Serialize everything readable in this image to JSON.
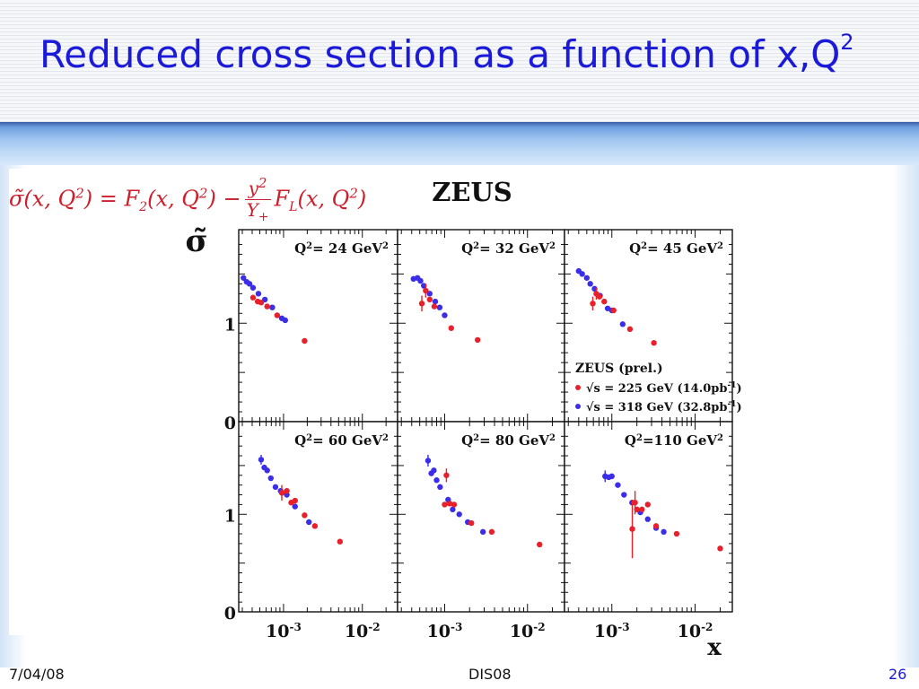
{
  "slide": {
    "title_main": "Reduced cross section as a function of x,Q",
    "title_sup": "2",
    "formula": {
      "lhs": "σ̃(x, Q",
      "lhs_sup": "2",
      "lhs_end": ") = F",
      "f2_sub": "2",
      "f2_args": "(x, Q",
      "f2_sup": "2",
      "f2_end": ") −",
      "frac_num": "y",
      "frac_num_sup": "2",
      "frac_den": "Y",
      "frac_den_sub": "+",
      "fl": "F",
      "fl_sub": "L",
      "fl_args": "(x, Q",
      "fl_sup": "2",
      "fl_end": ")"
    },
    "footer": {
      "date": "7/04/08",
      "center": "DIS08",
      "page": "26"
    }
  },
  "colors": {
    "title": "#1a1ad8",
    "red_series": "#e8202a",
    "blue_series": "#3a2ee8",
    "formula": "#cc1f2b"
  },
  "chart_data": {
    "type": "scatter",
    "title": "ZEUS",
    "ylabel": "σ̃",
    "xlabel": "x",
    "x_scale": "log",
    "xlim": [
      0.00027,
      0.028
    ],
    "ylim": [
      0,
      1.95
    ],
    "x_ticks": [
      {
        "value": 0.001,
        "label": "10",
        "sup": "-3"
      },
      {
        "value": 0.01,
        "label": "10",
        "sup": "-2"
      }
    ],
    "y_ticks": [
      {
        "value": 0,
        "label": "0"
      },
      {
        "value": 1,
        "label": "1"
      }
    ],
    "legend": {
      "title": "ZEUS (prel.)",
      "entries": [
        {
          "series": "red",
          "text": "√s = 225 GeV (14.0pb",
          "sup": "-1",
          "end": ")"
        },
        {
          "series": "blue",
          "text": "√s = 318 GeV (32.8pb",
          "sup": "-1",
          "end": ")"
        }
      ]
    },
    "panels": [
      {
        "q2_prefix": "Q",
        "q2_sup": "2",
        "q2_text": "= 24 GeV",
        "q2_unit_sup": "2",
        "red": [
          {
            "x": 0.00041,
            "y": 1.26
          },
          {
            "x": 0.00047,
            "y": 1.22
          },
          {
            "x": 0.00052,
            "y": 1.21
          },
          {
            "x": 0.00062,
            "y": 1.17
          },
          {
            "x": 0.00083,
            "y": 1.08
          },
          {
            "x": 0.00185,
            "y": 0.82
          }
        ],
        "blue": [
          {
            "x": 0.00031,
            "y": 1.46
          },
          {
            "x": 0.00034,
            "y": 1.42
          },
          {
            "x": 0.00037,
            "y": 1.4
          },
          {
            "x": 0.00041,
            "y": 1.36
          },
          {
            "x": 0.00048,
            "y": 1.3
          },
          {
            "x": 0.00058,
            "y": 1.24
          },
          {
            "x": 0.00072,
            "y": 1.16
          },
          {
            "x": 0.00095,
            "y": 1.05
          },
          {
            "x": 0.00105,
            "y": 1.03
          }
        ]
      },
      {
        "q2_prefix": "Q",
        "q2_sup": "2",
        "q2_text": "= 32 GeV",
        "q2_unit_sup": "2",
        "red": [
          {
            "x": 0.00053,
            "y": 1.2,
            "err": 0.08
          },
          {
            "x": 0.00059,
            "y": 1.33,
            "err": 0.07
          },
          {
            "x": 0.00066,
            "y": 1.24
          },
          {
            "x": 0.00075,
            "y": 1.17
          },
          {
            "x": 0.0012,
            "y": 0.95
          },
          {
            "x": 0.0025,
            "y": 0.83
          }
        ],
        "blue": [
          {
            "x": 0.00042,
            "y": 1.45
          },
          {
            "x": 0.00047,
            "y": 1.46
          },
          {
            "x": 0.00051,
            "y": 1.43
          },
          {
            "x": 0.00056,
            "y": 1.38
          },
          {
            "x": 0.00066,
            "y": 1.3
          },
          {
            "x": 0.00077,
            "y": 1.22
          },
          {
            "x": 0.00087,
            "y": 1.16
          },
          {
            "x": 0.001,
            "y": 1.08
          }
        ]
      },
      {
        "q2_prefix": "Q",
        "q2_sup": "2",
        "q2_text": "= 45 GeV",
        "q2_unit_sup": "2",
        "red": [
          {
            "x": 0.00059,
            "y": 1.2,
            "err": 0.07
          },
          {
            "x": 0.00065,
            "y": 1.3,
            "err": 0.06
          },
          {
            "x": 0.00071,
            "y": 1.27
          },
          {
            "x": 0.00081,
            "y": 1.22
          },
          {
            "x": 0.00105,
            "y": 1.13
          },
          {
            "x": 0.00165,
            "y": 0.94
          },
          {
            "x": 0.0032,
            "y": 0.8
          }
        ],
        "blue": [
          {
            "x": 0.0004,
            "y": 1.53
          },
          {
            "x": 0.00044,
            "y": 1.5
          },
          {
            "x": 0.0005,
            "y": 1.46
          },
          {
            "x": 0.00055,
            "y": 1.4
          },
          {
            "x": 0.00062,
            "y": 1.35
          },
          {
            "x": 0.00072,
            "y": 1.28
          },
          {
            "x": 0.00089,
            "y": 1.15
          },
          {
            "x": 0.001,
            "y": 1.13
          },
          {
            "x": 0.00135,
            "y": 0.99
          }
        ]
      },
      {
        "q2_prefix": "Q",
        "q2_sup": "2",
        "q2_text": "= 60 GeV",
        "q2_unit_sup": "2",
        "red": [
          {
            "x": 0.00095,
            "y": 1.22,
            "err": 0.08
          },
          {
            "x": 0.0011,
            "y": 1.24
          },
          {
            "x": 0.00125,
            "y": 1.12
          },
          {
            "x": 0.0014,
            "y": 1.14
          },
          {
            "x": 0.00185,
            "y": 0.99
          },
          {
            "x": 0.0025,
            "y": 0.88
          },
          {
            "x": 0.0052,
            "y": 0.72
          }
        ],
        "blue": [
          {
            "x": 0.00052,
            "y": 1.56,
            "err": 0.05
          },
          {
            "x": 0.00057,
            "y": 1.48
          },
          {
            "x": 0.00062,
            "y": 1.45
          },
          {
            "x": 0.00069,
            "y": 1.37
          },
          {
            "x": 0.00079,
            "y": 1.28
          },
          {
            "x": 0.00092,
            "y": 1.24
          },
          {
            "x": 0.0011,
            "y": 1.2
          },
          {
            "x": 0.0014,
            "y": 1.08
          },
          {
            "x": 0.0021,
            "y": 0.92
          }
        ]
      },
      {
        "q2_prefix": "Q",
        "q2_sup": "2",
        "q2_text": "= 80 GeV",
        "q2_unit_sup": "2",
        "red": [
          {
            "x": 0.001,
            "y": 1.1
          },
          {
            "x": 0.00105,
            "y": 1.4,
            "err": 0.07
          },
          {
            "x": 0.00115,
            "y": 1.11
          },
          {
            "x": 0.0013,
            "y": 1.1
          },
          {
            "x": 0.0021,
            "y": 0.91
          },
          {
            "x": 0.0037,
            "y": 0.82
          },
          {
            "x": 0.014,
            "y": 0.69
          }
        ],
        "blue": [
          {
            "x": 0.00063,
            "y": 1.55,
            "err": 0.06
          },
          {
            "x": 0.00069,
            "y": 1.42
          },
          {
            "x": 0.00074,
            "y": 1.45
          },
          {
            "x": 0.0008,
            "y": 1.35
          },
          {
            "x": 0.00088,
            "y": 1.28
          },
          {
            "x": 0.0011,
            "y": 1.15
          },
          {
            "x": 0.00125,
            "y": 1.05
          },
          {
            "x": 0.0015,
            "y": 1.0
          },
          {
            "x": 0.0019,
            "y": 0.92
          },
          {
            "x": 0.0029,
            "y": 0.82
          }
        ]
      },
      {
        "q2_prefix": "Q",
        "q2_sup": "2",
        "q2_text": "=110 GeV",
        "q2_unit_sup": "2",
        "red": [
          {
            "x": 0.00176,
            "y": 0.85,
            "err": 0.3
          },
          {
            "x": 0.0019,
            "y": 1.12,
            "err": 0.12
          },
          {
            "x": 0.002,
            "y": 1.05
          },
          {
            "x": 0.0023,
            "y": 1.05
          },
          {
            "x": 0.0027,
            "y": 1.1
          },
          {
            "x": 0.0034,
            "y": 0.88
          },
          {
            "x": 0.006,
            "y": 0.8
          },
          {
            "x": 0.02,
            "y": 0.65
          }
        ],
        "blue": [
          {
            "x": 0.00083,
            "y": 1.39,
            "err": 0.06
          },
          {
            "x": 0.00092,
            "y": 1.38
          },
          {
            "x": 0.001,
            "y": 1.39
          },
          {
            "x": 0.00118,
            "y": 1.3
          },
          {
            "x": 0.0014,
            "y": 1.2
          },
          {
            "x": 0.00175,
            "y": 1.12
          },
          {
            "x": 0.0022,
            "y": 1.02
          },
          {
            "x": 0.0027,
            "y": 0.95
          },
          {
            "x": 0.0034,
            "y": 0.86
          },
          {
            "x": 0.0042,
            "y": 0.82
          }
        ]
      }
    ]
  }
}
